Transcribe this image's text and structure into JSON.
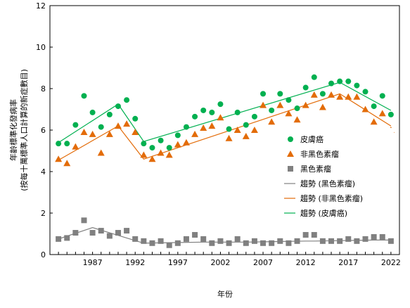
{
  "chart_data": {
    "type": "scatter",
    "xlabel": "年份",
    "ylabel_line1": "年齡標準化發病率",
    "ylabel_line2": "(按每十萬標準人口計算的新症數目)",
    "xlim": [
      1982,
      2023
    ],
    "ylim": [
      0,
      12
    ],
    "yticks": [
      0,
      2,
      4,
      6,
      8,
      10,
      12
    ],
    "xticks": [
      1987,
      1992,
      1997,
      2002,
      2007,
      2012,
      2017,
      2022
    ],
    "grid": false,
    "legend_position": "right",
    "series": [
      {
        "name": "皮膚癌",
        "marker": "circle",
        "color": "#00b050",
        "x": [
          1983,
          1984,
          1985,
          1986,
          1987,
          1988,
          1989,
          1990,
          1991,
          1992,
          1993,
          1994,
          1995,
          1996,
          1997,
          1998,
          1999,
          2000,
          2001,
          2002,
          2003,
          2004,
          2005,
          2006,
          2007,
          2008,
          2009,
          2010,
          2011,
          2012,
          2013,
          2014,
          2015,
          2016,
          2017,
          2018,
          2019,
          2020,
          2021,
          2022
        ],
        "y": [
          5.35,
          5.35,
          6.25,
          7.65,
          6.85,
          6.15,
          6.75,
          7.15,
          7.45,
          6.55,
          5.35,
          5.15,
          5.5,
          5.15,
          5.75,
          6.15,
          6.65,
          6.95,
          6.85,
          7.25,
          6.05,
          6.85,
          6.25,
          6.65,
          7.75,
          6.95,
          7.75,
          7.45,
          7.05,
          8.05,
          8.55,
          7.75,
          8.25,
          8.35,
          8.35,
          8.15,
          7.85,
          7.15,
          7.65,
          6.75
        ]
      },
      {
        "name": "非黑色素瘤",
        "marker": "triangle",
        "color": "#e36c09",
        "x": [
          1983,
          1984,
          1985,
          1986,
          1987,
          1988,
          1989,
          1990,
          1991,
          1992,
          1993,
          1994,
          1995,
          1996,
          1997,
          1998,
          1999,
          2000,
          2001,
          2002,
          2003,
          2004,
          2005,
          2006,
          2007,
          2008,
          2009,
          2010,
          2011,
          2012,
          2013,
          2014,
          2015,
          2016,
          2017,
          2018,
          2019,
          2020,
          2021,
          2022
        ],
        "y": [
          4.6,
          4.4,
          5.2,
          5.9,
          5.8,
          4.9,
          5.8,
          6.2,
          6.3,
          5.9,
          4.8,
          4.6,
          4.9,
          4.8,
          5.3,
          5.4,
          5.8,
          6.1,
          6.2,
          6.6,
          5.6,
          6.0,
          5.7,
          6.0,
          7.2,
          6.4,
          7.2,
          6.8,
          6.5,
          7.2,
          7.7,
          7.1,
          7.7,
          7.6,
          7.6,
          7.6,
          7.0,
          6.4,
          6.8,
          6.0
        ]
      },
      {
        "name": "黑色素瘤",
        "marker": "square",
        "color": "#808080",
        "x": [
          1983,
          1984,
          1985,
          1986,
          1987,
          1988,
          1989,
          1990,
          1991,
          1992,
          1993,
          1994,
          1995,
          1996,
          1997,
          1998,
          1999,
          2000,
          2001,
          2002,
          2003,
          2004,
          2005,
          2006,
          2007,
          2008,
          2009,
          2010,
          2011,
          2012,
          2013,
          2014,
          2015,
          2016,
          2017,
          2018,
          2019,
          2020,
          2021,
          2022
        ],
        "y": [
          0.75,
          0.8,
          1.05,
          1.65,
          1.05,
          1.15,
          0.9,
          1.05,
          1.15,
          0.75,
          0.65,
          0.55,
          0.65,
          0.45,
          0.55,
          0.75,
          0.95,
          0.75,
          0.55,
          0.65,
          0.55,
          0.75,
          0.55,
          0.65,
          0.55,
          0.55,
          0.65,
          0.55,
          0.65,
          0.95,
          0.95,
          0.65,
          0.65,
          0.65,
          0.75,
          0.65,
          0.75,
          0.85,
          0.85,
          0.65
        ]
      }
    ],
    "trend_lines": [
      {
        "name": "趨勢 (黑色素瘤)",
        "color": "#808080",
        "x": [
          1983,
          1987,
          1993,
          2000,
          2005,
          2012,
          2013,
          2020,
          2022
        ],
        "y": [
          0.75,
          1.3,
          0.55,
          0.6,
          0.6,
          0.65,
          0.65,
          0.7,
          0.7
        ]
      },
      {
        "name": "趨勢 (非黑色素瘤)",
        "color": "#e36c09",
        "x": [
          1983,
          1990,
          1993,
          2016,
          2022
        ],
        "y": [
          4.55,
          6.2,
          4.6,
          7.75,
          6.2
        ]
      },
      {
        "name": "趨勢 (皮膚癌)",
        "color": "#00b050",
        "x": [
          1983,
          1990,
          1993,
          2016,
          2022
        ],
        "y": [
          5.4,
          7.25,
          5.45,
          8.3,
          6.95
        ]
      }
    ]
  }
}
